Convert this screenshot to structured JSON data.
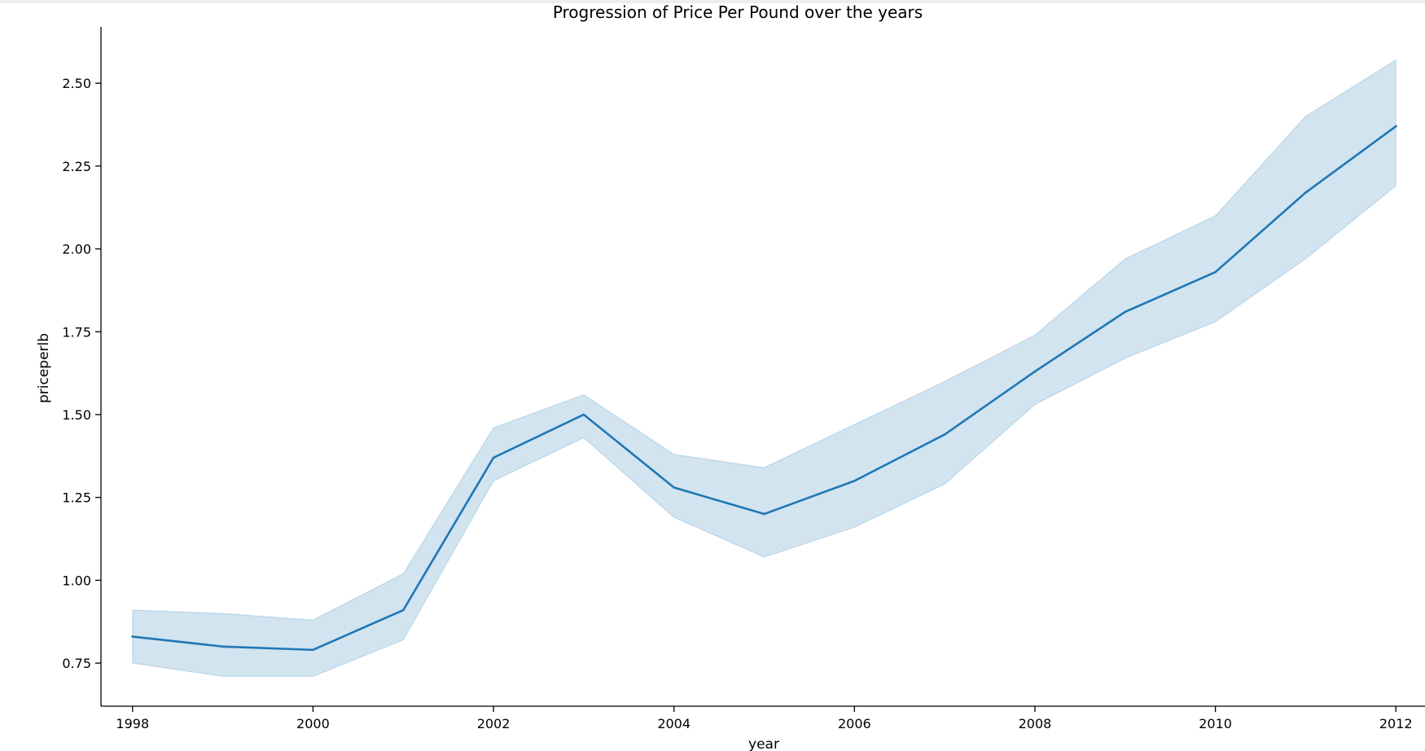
{
  "chart_data": {
    "type": "line",
    "title": "Progression of Price Per Pound over the years",
    "xlabel": "year",
    "ylabel": "priceperlb",
    "x": [
      1998,
      1999,
      2000,
      2001,
      2002,
      2003,
      2004,
      2005,
      2006,
      2007,
      2008,
      2009,
      2010,
      2011,
      2012
    ],
    "series": [
      {
        "values": [
          0.83,
          0.8,
          0.79,
          0.91,
          1.37,
          1.5,
          1.28,
          1.2,
          1.3,
          1.44,
          1.63,
          1.81,
          1.93,
          2.17,
          2.37
        ],
        "ci_lower": [
          0.75,
          0.71,
          0.71,
          0.82,
          1.3,
          1.43,
          1.19,
          1.07,
          1.16,
          1.29,
          1.53,
          1.67,
          1.78,
          1.97,
          2.19
        ],
        "ci_upper": [
          0.91,
          0.9,
          0.88,
          1.02,
          1.46,
          1.56,
          1.38,
          1.34,
          1.47,
          1.6,
          1.74,
          1.97,
          2.1,
          2.4,
          2.57
        ]
      }
    ],
    "xticks": [
      "1998",
      "2000",
      "2002",
      "2004",
      "2006",
      "2008",
      "2010",
      "2012"
    ],
    "yticks": [
      "0.75",
      "1.00",
      "1.25",
      "1.50",
      "1.75",
      "2.00",
      "2.25",
      "2.50"
    ],
    "xlim": [
      1997.65,
      2012.35
    ],
    "ylim": [
      0.62,
      2.67
    ],
    "grid": false,
    "legend": "none",
    "colors": {
      "line": "#1f77b4",
      "band": "#1f77b4"
    }
  }
}
